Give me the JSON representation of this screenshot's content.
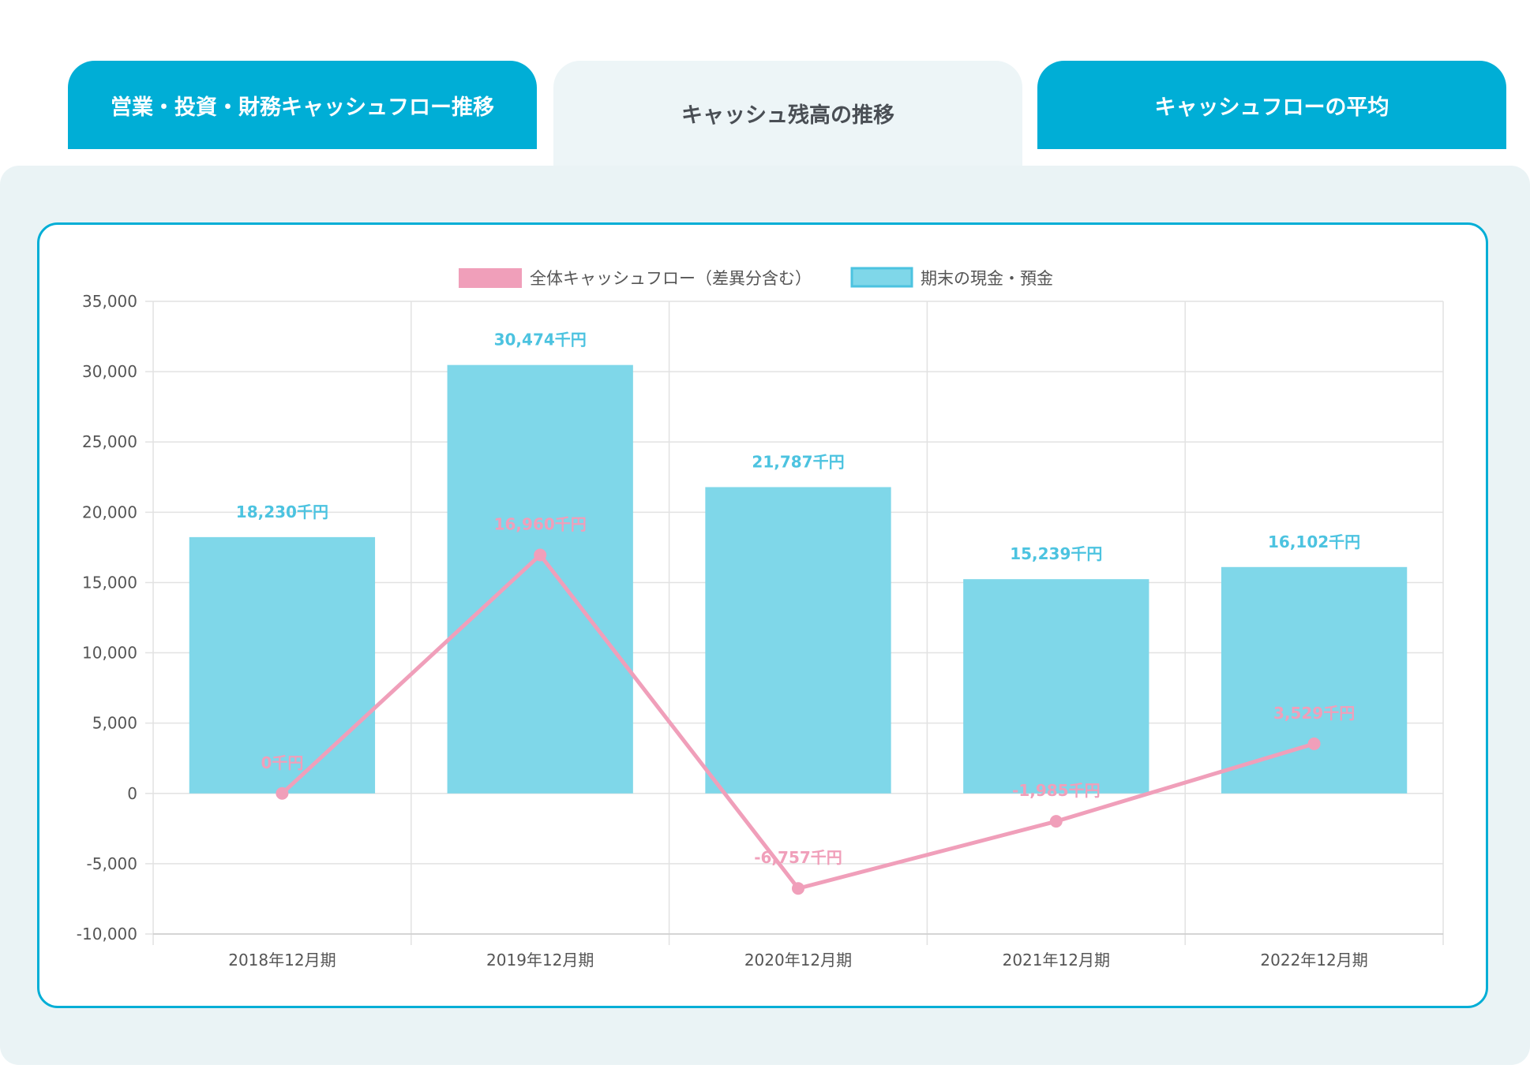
{
  "tabs": [
    {
      "label": "営業・投資・財務キャッシュフロー推移",
      "active": false
    },
    {
      "label": "キャッシュ残高の推移",
      "active": true
    },
    {
      "label": "キャッシュフローの平均",
      "active": false
    }
  ],
  "colors": {
    "accent": "#00aed6",
    "bar": "#7fd7e9",
    "bar_label": "#4cc3e0",
    "line": "#f09fba"
  },
  "chart_data": {
    "type": "bar+line",
    "categories": [
      "2018年12月期",
      "2019年12月期",
      "2020年12月期",
      "2021年12月期",
      "2022年12月期"
    ],
    "series": [
      {
        "name": "全体キャッシュフロー（差異分含む）",
        "type": "line",
        "values": [
          0,
          16960,
          -6757,
          -1985,
          3529
        ],
        "labels": [
          "0千円",
          "16,960千円",
          "-6,757千円",
          "-1,985千円",
          "3,529千円"
        ]
      },
      {
        "name": "期末の現金・預金",
        "type": "bar",
        "values": [
          18230,
          30474,
          21787,
          15239,
          16102
        ],
        "labels": [
          "18,230千円",
          "30,474千円",
          "21,787千円",
          "15,239千円",
          "16,102千円"
        ]
      }
    ],
    "ylim": [
      -10000,
      35000
    ],
    "yticks": [
      "35,000",
      "30,000",
      "25,000",
      "20,000",
      "15,000",
      "10,000",
      "5,000",
      "0",
      "-5,000",
      "-10,000"
    ],
    "grid": true,
    "legend": "top"
  }
}
